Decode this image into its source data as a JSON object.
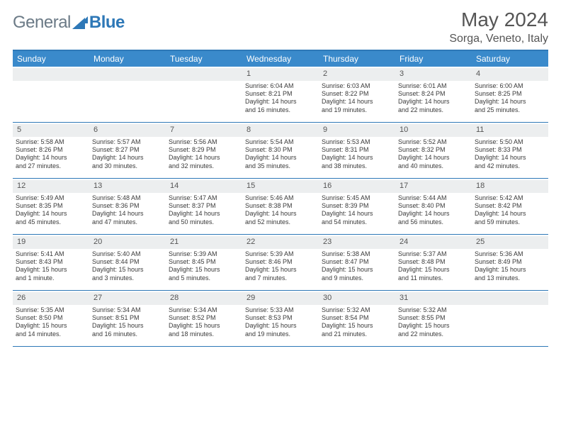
{
  "logo": {
    "word1": "General",
    "word2": "Blue"
  },
  "header": {
    "title": "May 2024",
    "location": "Sorga, Veneto, Italy"
  },
  "colors": {
    "brand_blue": "#3a8acb",
    "rule_blue": "#2e78b7",
    "daynum_bg": "#eceeef",
    "text": "#333333",
    "header_text": "#555555"
  },
  "fonts": {
    "title_size": 28,
    "location_size": 16,
    "dow_size": 12,
    "daynum_size": 11,
    "info_size": 9
  },
  "days_of_week": [
    "Sunday",
    "Monday",
    "Tuesday",
    "Wednesday",
    "Thursday",
    "Friday",
    "Saturday"
  ],
  "weeks": [
    [
      null,
      null,
      null,
      {
        "n": "1",
        "sr": "Sunrise: 6:04 AM",
        "ss": "Sunset: 8:21 PM",
        "d1": "Daylight: 14 hours",
        "d2": "and 16 minutes."
      },
      {
        "n": "2",
        "sr": "Sunrise: 6:03 AM",
        "ss": "Sunset: 8:22 PM",
        "d1": "Daylight: 14 hours",
        "d2": "and 19 minutes."
      },
      {
        "n": "3",
        "sr": "Sunrise: 6:01 AM",
        "ss": "Sunset: 8:24 PM",
        "d1": "Daylight: 14 hours",
        "d2": "and 22 minutes."
      },
      {
        "n": "4",
        "sr": "Sunrise: 6:00 AM",
        "ss": "Sunset: 8:25 PM",
        "d1": "Daylight: 14 hours",
        "d2": "and 25 minutes."
      }
    ],
    [
      {
        "n": "5",
        "sr": "Sunrise: 5:58 AM",
        "ss": "Sunset: 8:26 PM",
        "d1": "Daylight: 14 hours",
        "d2": "and 27 minutes."
      },
      {
        "n": "6",
        "sr": "Sunrise: 5:57 AM",
        "ss": "Sunset: 8:27 PM",
        "d1": "Daylight: 14 hours",
        "d2": "and 30 minutes."
      },
      {
        "n": "7",
        "sr": "Sunrise: 5:56 AM",
        "ss": "Sunset: 8:29 PM",
        "d1": "Daylight: 14 hours",
        "d2": "and 32 minutes."
      },
      {
        "n": "8",
        "sr": "Sunrise: 5:54 AM",
        "ss": "Sunset: 8:30 PM",
        "d1": "Daylight: 14 hours",
        "d2": "and 35 minutes."
      },
      {
        "n": "9",
        "sr": "Sunrise: 5:53 AM",
        "ss": "Sunset: 8:31 PM",
        "d1": "Daylight: 14 hours",
        "d2": "and 38 minutes."
      },
      {
        "n": "10",
        "sr": "Sunrise: 5:52 AM",
        "ss": "Sunset: 8:32 PM",
        "d1": "Daylight: 14 hours",
        "d2": "and 40 minutes."
      },
      {
        "n": "11",
        "sr": "Sunrise: 5:50 AM",
        "ss": "Sunset: 8:33 PM",
        "d1": "Daylight: 14 hours",
        "d2": "and 42 minutes."
      }
    ],
    [
      {
        "n": "12",
        "sr": "Sunrise: 5:49 AM",
        "ss": "Sunset: 8:35 PM",
        "d1": "Daylight: 14 hours",
        "d2": "and 45 minutes."
      },
      {
        "n": "13",
        "sr": "Sunrise: 5:48 AM",
        "ss": "Sunset: 8:36 PM",
        "d1": "Daylight: 14 hours",
        "d2": "and 47 minutes."
      },
      {
        "n": "14",
        "sr": "Sunrise: 5:47 AM",
        "ss": "Sunset: 8:37 PM",
        "d1": "Daylight: 14 hours",
        "d2": "and 50 minutes."
      },
      {
        "n": "15",
        "sr": "Sunrise: 5:46 AM",
        "ss": "Sunset: 8:38 PM",
        "d1": "Daylight: 14 hours",
        "d2": "and 52 minutes."
      },
      {
        "n": "16",
        "sr": "Sunrise: 5:45 AM",
        "ss": "Sunset: 8:39 PM",
        "d1": "Daylight: 14 hours",
        "d2": "and 54 minutes."
      },
      {
        "n": "17",
        "sr": "Sunrise: 5:44 AM",
        "ss": "Sunset: 8:40 PM",
        "d1": "Daylight: 14 hours",
        "d2": "and 56 minutes."
      },
      {
        "n": "18",
        "sr": "Sunrise: 5:42 AM",
        "ss": "Sunset: 8:42 PM",
        "d1": "Daylight: 14 hours",
        "d2": "and 59 minutes."
      }
    ],
    [
      {
        "n": "19",
        "sr": "Sunrise: 5:41 AM",
        "ss": "Sunset: 8:43 PM",
        "d1": "Daylight: 15 hours",
        "d2": "and 1 minute."
      },
      {
        "n": "20",
        "sr": "Sunrise: 5:40 AM",
        "ss": "Sunset: 8:44 PM",
        "d1": "Daylight: 15 hours",
        "d2": "and 3 minutes."
      },
      {
        "n": "21",
        "sr": "Sunrise: 5:39 AM",
        "ss": "Sunset: 8:45 PM",
        "d1": "Daylight: 15 hours",
        "d2": "and 5 minutes."
      },
      {
        "n": "22",
        "sr": "Sunrise: 5:39 AM",
        "ss": "Sunset: 8:46 PM",
        "d1": "Daylight: 15 hours",
        "d2": "and 7 minutes."
      },
      {
        "n": "23",
        "sr": "Sunrise: 5:38 AM",
        "ss": "Sunset: 8:47 PM",
        "d1": "Daylight: 15 hours",
        "d2": "and 9 minutes."
      },
      {
        "n": "24",
        "sr": "Sunrise: 5:37 AM",
        "ss": "Sunset: 8:48 PM",
        "d1": "Daylight: 15 hours",
        "d2": "and 11 minutes."
      },
      {
        "n": "25",
        "sr": "Sunrise: 5:36 AM",
        "ss": "Sunset: 8:49 PM",
        "d1": "Daylight: 15 hours",
        "d2": "and 13 minutes."
      }
    ],
    [
      {
        "n": "26",
        "sr": "Sunrise: 5:35 AM",
        "ss": "Sunset: 8:50 PM",
        "d1": "Daylight: 15 hours",
        "d2": "and 14 minutes."
      },
      {
        "n": "27",
        "sr": "Sunrise: 5:34 AM",
        "ss": "Sunset: 8:51 PM",
        "d1": "Daylight: 15 hours",
        "d2": "and 16 minutes."
      },
      {
        "n": "28",
        "sr": "Sunrise: 5:34 AM",
        "ss": "Sunset: 8:52 PM",
        "d1": "Daylight: 15 hours",
        "d2": "and 18 minutes."
      },
      {
        "n": "29",
        "sr": "Sunrise: 5:33 AM",
        "ss": "Sunset: 8:53 PM",
        "d1": "Daylight: 15 hours",
        "d2": "and 19 minutes."
      },
      {
        "n": "30",
        "sr": "Sunrise: 5:32 AM",
        "ss": "Sunset: 8:54 PM",
        "d1": "Daylight: 15 hours",
        "d2": "and 21 minutes."
      },
      {
        "n": "31",
        "sr": "Sunrise: 5:32 AM",
        "ss": "Sunset: 8:55 PM",
        "d1": "Daylight: 15 hours",
        "d2": "and 22 minutes."
      },
      null
    ]
  ]
}
